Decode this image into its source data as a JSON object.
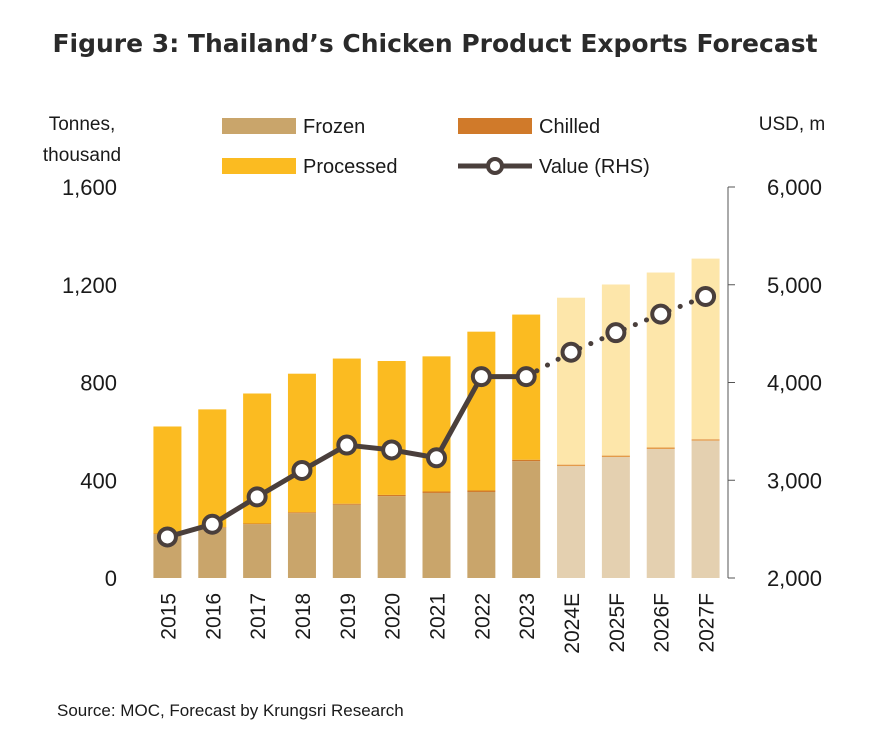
{
  "chart_data": {
    "type": "bar",
    "title": "Figure 3: Thailand’s Chicken Product Exports Forecast",
    "ylabel_left": [
      "Tonnes,",
      "thousand"
    ],
    "ylabel_right": "USD, m",
    "ylim_left": [
      0,
      1600
    ],
    "yticks_left": [
      "0",
      "400",
      "800",
      "1,200",
      "1,600"
    ],
    "ylim_right": [
      2000,
      6000
    ],
    "yticks_right": [
      "2,000",
      "3,000",
      "4,000",
      "5,000",
      "6,000"
    ],
    "categories": [
      "2015",
      "2016",
      "2017",
      "2018",
      "2019",
      "2020",
      "2021",
      "2022",
      "2023",
      "2024E",
      "2025F",
      "2026F",
      "2027F"
    ],
    "forecast_from_index": 9,
    "stacked": true,
    "series": [
      {
        "name": "Frozen",
        "kind": "bar",
        "color": "#c9a56b",
        "forecast_color": "#e4d0b0",
        "values": [
          180,
          205,
          220,
          265,
          300,
          335,
          348,
          352,
          478,
          458,
          495,
          528,
          562
        ]
      },
      {
        "name": "Chilled",
        "kind": "bar",
        "color": "#d07a2a",
        "forecast_color": "#e39a4a",
        "values": [
          2,
          3,
          3,
          4,
          4,
          5,
          6,
          6,
          6,
          6,
          6,
          6,
          6
        ]
      },
      {
        "name": "Processed",
        "kind": "bar",
        "color": "#fbbb21",
        "forecast_color": "#fde6aa",
        "values": [
          438,
          482,
          532,
          567,
          594,
          548,
          553,
          650,
          594,
          683,
          700,
          716,
          739
        ]
      },
      {
        "name": "Value (RHS)",
        "kind": "line",
        "axis": "right",
        "color": "#4a3f3c",
        "values": [
          2420,
          2550,
          2830,
          3100,
          3360,
          3310,
          3230,
          4060,
          4060,
          4310,
          4510,
          4700,
          4880
        ]
      }
    ],
    "legend_position": "top",
    "grid": false
  },
  "source": "Source: MOC, Forecast by Krungsri Research"
}
